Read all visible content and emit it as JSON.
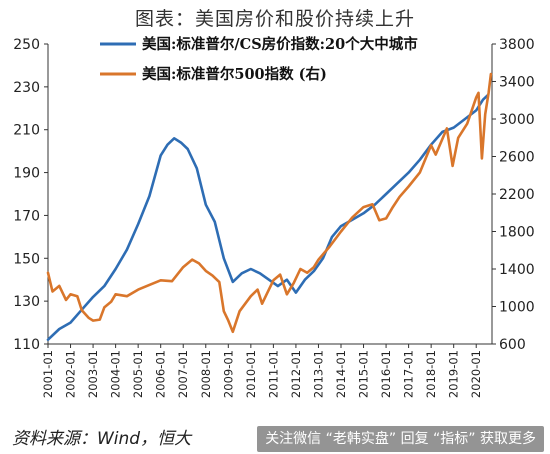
{
  "title": "图表：美国房价和股价持续上升",
  "source": "资料来源：Wind，恒大",
  "watermark": "关注微信 “老韩实盘” 回复 “指标” 获取更多",
  "chart_data": {
    "type": "line",
    "title": "图表：美国房价和股价持续上升",
    "legend_position": "top",
    "x_tick_labels": [
      "2001-01",
      "2002-01",
      "2003-01",
      "2004-01",
      "2005-01",
      "2006-01",
      "2007-01",
      "2008-01",
      "2009-01",
      "2010-01",
      "2011-01",
      "2012-01",
      "2013-01",
      "2014-01",
      "2015-01",
      "2016-01",
      "2017-01",
      "2018-01",
      "2019-01",
      "2020-01"
    ],
    "x_range": [
      2001.0,
      2020.7
    ],
    "y_left": {
      "range": [
        110,
        250
      ],
      "ticks": [
        110,
        130,
        150,
        170,
        190,
        210,
        230,
        250
      ]
    },
    "y_right": {
      "range": [
        600,
        3800
      ],
      "ticks": [
        600,
        1000,
        1400,
        1800,
        2200,
        2600,
        3000,
        3400,
        3800
      ]
    },
    "series": [
      {
        "name": "美国:标准普尔/CS房价指数:20个大中城市",
        "axis": "left",
        "color": "#2e6db4",
        "points": [
          [
            2001.0,
            112
          ],
          [
            2001.5,
            117
          ],
          [
            2002.0,
            120
          ],
          [
            2002.5,
            126
          ],
          [
            2003.0,
            132
          ],
          [
            2003.5,
            137
          ],
          [
            2004.0,
            145
          ],
          [
            2004.5,
            154
          ],
          [
            2005.0,
            166
          ],
          [
            2005.5,
            179
          ],
          [
            2006.0,
            198
          ],
          [
            2006.3,
            203
          ],
          [
            2006.6,
            206
          ],
          [
            2006.9,
            204
          ],
          [
            2007.2,
            201
          ],
          [
            2007.6,
            192
          ],
          [
            2008.0,
            175
          ],
          [
            2008.4,
            167
          ],
          [
            2008.8,
            150
          ],
          [
            2009.2,
            139
          ],
          [
            2009.6,
            143
          ],
          [
            2010.0,
            145
          ],
          [
            2010.4,
            143
          ],
          [
            2010.8,
            140
          ],
          [
            2011.2,
            137
          ],
          [
            2011.6,
            140
          ],
          [
            2012.0,
            134
          ],
          [
            2012.4,
            140
          ],
          [
            2012.8,
            144
          ],
          [
            2013.2,
            150
          ],
          [
            2013.6,
            160
          ],
          [
            2014.0,
            165
          ],
          [
            2014.5,
            168
          ],
          [
            2015.0,
            171
          ],
          [
            2015.5,
            175
          ],
          [
            2016.0,
            180
          ],
          [
            2016.5,
            185
          ],
          [
            2017.0,
            190
          ],
          [
            2017.5,
            196
          ],
          [
            2018.0,
            203
          ],
          [
            2018.5,
            209
          ],
          [
            2019.0,
            211
          ],
          [
            2019.5,
            215
          ],
          [
            2020.0,
            219
          ],
          [
            2020.3,
            224
          ],
          [
            2020.5,
            226
          ]
        ]
      },
      {
        "name": "美国:标准普尔500指数 (右)",
        "axis": "right",
        "color": "#d9762b",
        "points": [
          [
            2001.0,
            1360
          ],
          [
            2001.2,
            1160
          ],
          [
            2001.5,
            1220
          ],
          [
            2001.8,
            1070
          ],
          [
            2002.0,
            1130
          ],
          [
            2002.3,
            1110
          ],
          [
            2002.5,
            960
          ],
          [
            2002.8,
            880
          ],
          [
            2003.0,
            850
          ],
          [
            2003.3,
            860
          ],
          [
            2003.5,
            990
          ],
          [
            2003.8,
            1050
          ],
          [
            2004.0,
            1130
          ],
          [
            2004.5,
            1110
          ],
          [
            2005.0,
            1180
          ],
          [
            2005.5,
            1230
          ],
          [
            2006.0,
            1280
          ],
          [
            2006.5,
            1270
          ],
          [
            2007.0,
            1420
          ],
          [
            2007.4,
            1500
          ],
          [
            2007.7,
            1460
          ],
          [
            2008.0,
            1380
          ],
          [
            2008.3,
            1330
          ],
          [
            2008.6,
            1260
          ],
          [
            2008.8,
            950
          ],
          [
            2009.0,
            850
          ],
          [
            2009.2,
            730
          ],
          [
            2009.5,
            950
          ],
          [
            2010.0,
            1110
          ],
          [
            2010.3,
            1180
          ],
          [
            2010.5,
            1030
          ],
          [
            2010.8,
            1180
          ],
          [
            2011.0,
            1280
          ],
          [
            2011.3,
            1340
          ],
          [
            2011.6,
            1130
          ],
          [
            2011.9,
            1250
          ],
          [
            2012.2,
            1400
          ],
          [
            2012.5,
            1360
          ],
          [
            2012.8,
            1420
          ],
          [
            2013.0,
            1500
          ],
          [
            2013.5,
            1640
          ],
          [
            2014.0,
            1800
          ],
          [
            2014.5,
            1950
          ],
          [
            2015.0,
            2060
          ],
          [
            2015.4,
            2090
          ],
          [
            2015.7,
            1920
          ],
          [
            2016.0,
            1940
          ],
          [
            2016.3,
            2060
          ],
          [
            2016.6,
            2170
          ],
          [
            2017.0,
            2280
          ],
          [
            2017.5,
            2430
          ],
          [
            2018.0,
            2720
          ],
          [
            2018.2,
            2620
          ],
          [
            2018.7,
            2900
          ],
          [
            2018.95,
            2500
          ],
          [
            2019.2,
            2800
          ],
          [
            2019.6,
            2950
          ],
          [
            2020.0,
            3230
          ],
          [
            2020.1,
            3280
          ],
          [
            2020.25,
            2580
          ],
          [
            2020.4,
            3050
          ],
          [
            2020.55,
            3280
          ],
          [
            2020.65,
            3480
          ]
        ]
      }
    ]
  }
}
